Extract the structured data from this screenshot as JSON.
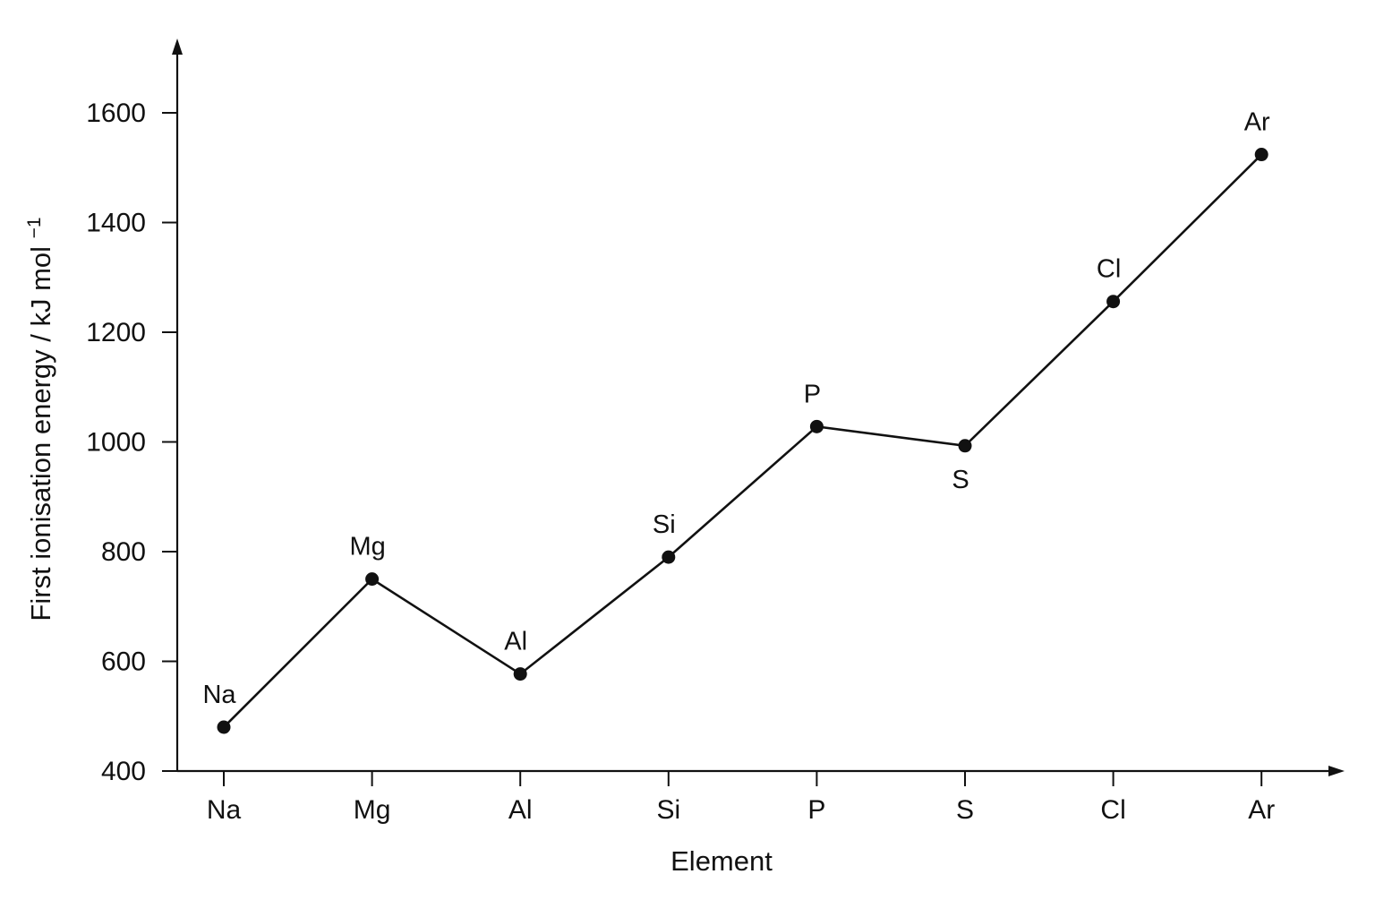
{
  "chart_data": {
    "type": "line",
    "xlabel": "Element",
    "ylabel_main": "First ionisation energy / kJ mol",
    "ylabel_superscript": "−1",
    "categories": [
      "Na",
      "Mg",
      "Al",
      "Si",
      "P",
      "S",
      "Cl",
      "Ar"
    ],
    "series": [
      {
        "values": [
          480,
          750,
          577,
          790,
          1028,
          993,
          1256,
          1524
        ]
      }
    ],
    "point_labels": [
      "Na",
      "Mg",
      "Al",
      "Si",
      "P",
      "S",
      "Cl",
      "Ar"
    ],
    "point_label_positions": [
      "above",
      "above",
      "above",
      "above",
      "above",
      "below",
      "above",
      "above"
    ],
    "yticks": [
      400,
      600,
      800,
      1000,
      1200,
      1400,
      1600
    ],
    "ylim": [
      400,
      1720
    ],
    "grid": false,
    "legend": "none",
    "colors": {
      "axis": "#111111",
      "line": "#111111",
      "point": "#111111",
      "text": "#111111"
    }
  }
}
